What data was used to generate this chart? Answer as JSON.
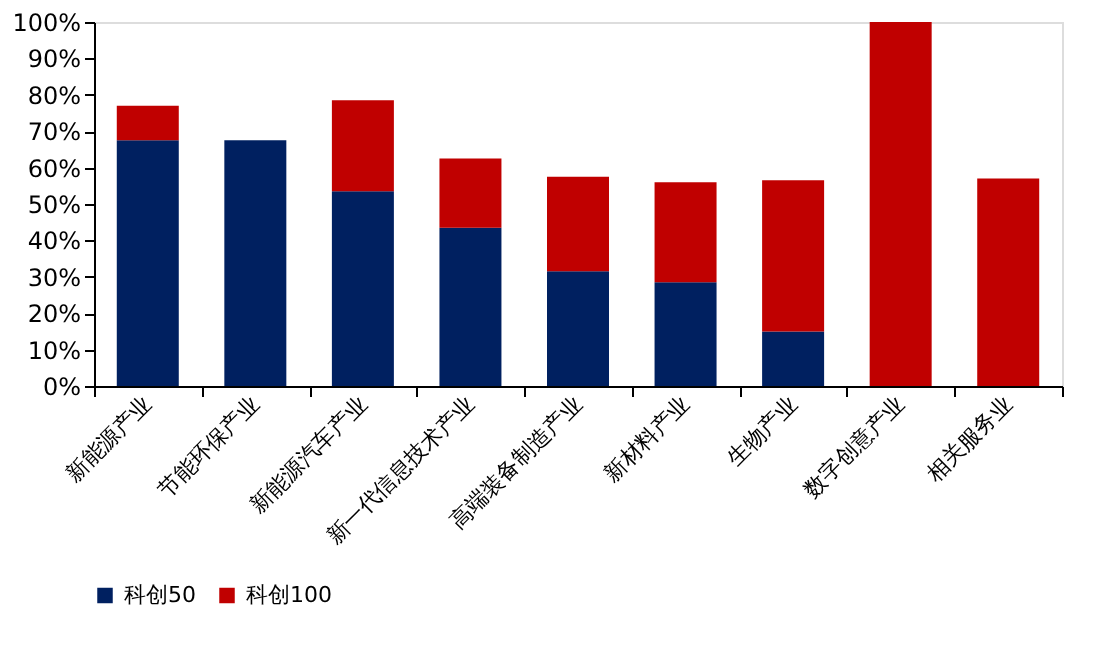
{
  "chart_data": {
    "type": "bar",
    "stacked": true,
    "categories": [
      "新能源产业",
      "节能环保产业",
      "新能源汽车产业",
      "新一代信息技术产业",
      "高端装备制造产业",
      "新材料产业",
      "生物产业",
      "数字创意产业",
      "相关服务业"
    ],
    "series": [
      {
        "name": "科创50",
        "color": "#002060",
        "values": [
          67.5,
          67.5,
          53.5,
          43.5,
          31.5,
          28.5,
          15,
          0,
          0
        ]
      },
      {
        "name": "科创100",
        "color": "#c00000",
        "values": [
          9.5,
          0,
          25,
          19,
          26,
          27.5,
          41.5,
          100,
          57
        ]
      }
    ],
    "ylim": [
      0,
      100
    ],
    "yticks": [
      {
        "value": 0,
        "label": "0%"
      },
      {
        "value": 10,
        "label": "10%"
      },
      {
        "value": 20,
        "label": "20%"
      },
      {
        "value": 30,
        "label": "30%"
      },
      {
        "value": 40,
        "label": "40%"
      },
      {
        "value": 50,
        "label": "50%"
      },
      {
        "value": 60,
        "label": "60%"
      },
      {
        "value": 70,
        "label": "70%"
      },
      {
        "value": 80,
        "label": "80%"
      },
      {
        "value": 90,
        "label": "90%"
      },
      {
        "value": 100,
        "label": "100%"
      }
    ],
    "grid": false,
    "legend": "bottom"
  }
}
